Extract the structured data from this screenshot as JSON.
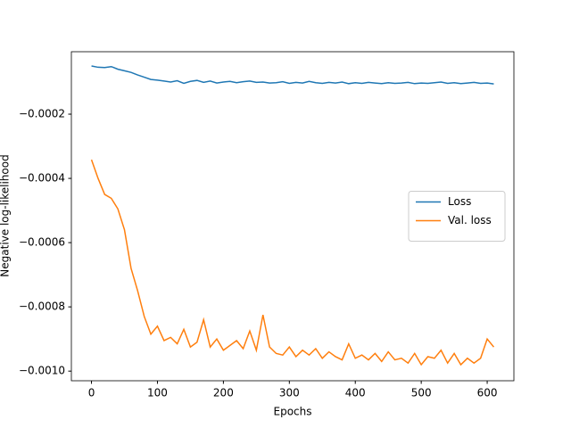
{
  "chart_data": {
    "type": "line",
    "x_label": "Epochs",
    "y_label": "Negative log-likelihood",
    "x": [
      0,
      10,
      20,
      30,
      40,
      50,
      60,
      70,
      80,
      90,
      100,
      110,
      120,
      130,
      140,
      150,
      160,
      170,
      180,
      190,
      200,
      210,
      220,
      230,
      240,
      250,
      260,
      270,
      280,
      290,
      300,
      310,
      320,
      330,
      340,
      350,
      360,
      370,
      380,
      390,
      400,
      410,
      420,
      430,
      440,
      450,
      460,
      470,
      480,
      490,
      500,
      510,
      520,
      530,
      540,
      550,
      560,
      570,
      580,
      590,
      600,
      610
    ],
    "series": [
      {
        "name": "Loss",
        "color": "#1f77b4",
        "values": [
          -5e-05,
          -5.4e-05,
          -5.5e-05,
          -5.2e-05,
          -6e-05,
          -6.5e-05,
          -7e-05,
          -7.8e-05,
          -8.5e-05,
          -9.2e-05,
          -9.4e-05,
          -9.7e-05,
          -0.0001,
          -9.6e-05,
          -0.000104,
          -9.8e-05,
          -9.5e-05,
          -0.000101,
          -9.7e-05,
          -0.000103,
          -0.0001,
          -9.8e-05,
          -0.000102,
          -9.9e-05,
          -9.7e-05,
          -0.000101,
          -0.0001,
          -0.000103,
          -0.000102,
          -9.9e-05,
          -0.000104,
          -0.000101,
          -0.000103,
          -9.8e-05,
          -0.000102,
          -0.000104,
          -0.000101,
          -0.000103,
          -0.0001,
          -0.000105,
          -0.000102,
          -0.000104,
          -0.000101,
          -0.000103,
          -0.000105,
          -0.000102,
          -0.000104,
          -0.000103,
          -0.000101,
          -0.000105,
          -0.000103,
          -0.000104,
          -0.000102,
          -0.0001,
          -0.000104,
          -0.000102,
          -0.000105,
          -0.000103,
          -0.000101,
          -0.000104,
          -0.000103,
          -0.000106
        ]
      },
      {
        "name": "Val. loss",
        "color": "#ff7f0e",
        "values": [
          -0.000342,
          -0.0004,
          -0.00045,
          -0.000462,
          -0.000495,
          -0.00056,
          -0.00068,
          -0.00075,
          -0.00083,
          -0.000885,
          -0.00086,
          -0.000905,
          -0.000895,
          -0.000915,
          -0.00087,
          -0.000925,
          -0.00091,
          -0.00084,
          -0.000925,
          -0.0009,
          -0.000935,
          -0.00092,
          -0.000905,
          -0.00093,
          -0.000875,
          -0.000935,
          -0.000825,
          -0.000925,
          -0.000945,
          -0.00095,
          -0.000925,
          -0.000955,
          -0.000935,
          -0.00095,
          -0.00093,
          -0.00096,
          -0.00094,
          -0.000955,
          -0.000965,
          -0.000915,
          -0.00096,
          -0.00095,
          -0.000965,
          -0.000945,
          -0.00097,
          -0.00094,
          -0.000965,
          -0.00096,
          -0.000975,
          -0.000945,
          -0.00098,
          -0.000955,
          -0.00096,
          -0.000935,
          -0.000975,
          -0.000945,
          -0.00098,
          -0.00096,
          -0.000975,
          -0.00096,
          -0.0009,
          -0.000925
        ]
      }
    ],
    "xlim": [
      -30.5,
      640.5
    ],
    "xticks": [
      0,
      100,
      200,
      300,
      400,
      500,
      600
    ],
    "ylim": [
      -0.00103,
      -5.6e-06
    ],
    "yticks": [
      {
        "value": -0.001,
        "label": "−0.0010"
      },
      {
        "value": -0.0008,
        "label": "−0.0008"
      },
      {
        "value": -0.0006,
        "label": "−0.0006"
      },
      {
        "value": -0.0004,
        "label": "−0.0004"
      },
      {
        "value": -0.0002,
        "label": "−0.0002"
      }
    ],
    "grid": false,
    "legend": "center right"
  }
}
